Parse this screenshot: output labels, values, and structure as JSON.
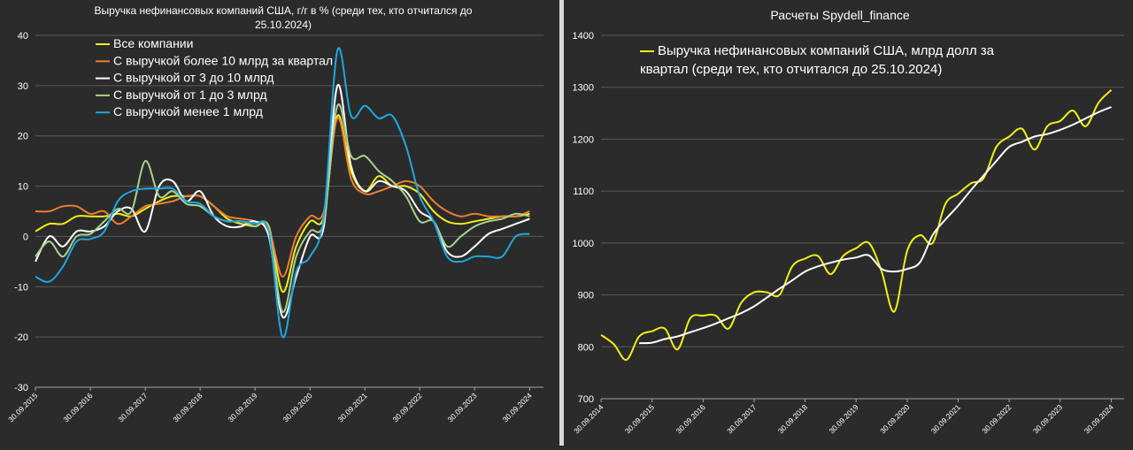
{
  "chart_data": [
    {
      "type": "line",
      "title": "Выручка нефинансовых компаний США, г/г в % (среди тех, кто отчитался до 25.10.2024)",
      "title_lines": [
        "Выручка нефинансовых компаний США, г/г в % (среди тех, кто отчитался до",
        "25.10.2024)"
      ],
      "xlabel": "",
      "ylabel": "",
      "x_start": "2015-09-30",
      "x_end": "2024-12-31",
      "ylim": [
        -30,
        40
      ],
      "y_ticks": [
        -30,
        -20,
        -10,
        0,
        10,
        20,
        30,
        40
      ],
      "x_tick_labels": [
        "30.09.2015",
        "30.09.2016",
        "30.09.2017",
        "30.09.2018",
        "30.09.2019",
        "30.09.2020",
        "30.09.2021",
        "30.09.2022",
        "30.09.2023",
        "30.09.2024"
      ],
      "grid": true,
      "legend_position": "top-left",
      "x": [
        "2015-09-30",
        "2015-12-31",
        "2016-03-31",
        "2016-06-30",
        "2016-09-30",
        "2016-12-31",
        "2017-03-31",
        "2017-06-30",
        "2017-09-30",
        "2017-12-31",
        "2018-03-31",
        "2018-06-30",
        "2018-09-30",
        "2018-12-31",
        "2019-03-31",
        "2019-06-30",
        "2019-09-30",
        "2019-12-31",
        "2020-03-31",
        "2020-06-30",
        "2020-09-30",
        "2020-12-31",
        "2021-03-31",
        "2021-06-30",
        "2021-09-30",
        "2021-12-31",
        "2022-03-31",
        "2022-06-30",
        "2022-09-30",
        "2022-12-31",
        "2023-03-31",
        "2023-06-30",
        "2023-09-30",
        "2023-12-31",
        "2024-03-31",
        "2024-06-30",
        "2024-09-30"
      ],
      "series": [
        {
          "name": "Все компании",
          "color": "#f2ee18",
          "values": [
            1,
            2.5,
            2.5,
            4,
            4,
            4,
            4.5,
            4,
            5.5,
            7,
            8,
            8,
            8,
            6,
            3.5,
            2.5,
            2,
            2,
            -11,
            -2,
            3,
            4,
            24,
            13,
            9,
            12,
            10,
            10,
            8.5,
            5,
            3,
            2.5,
            3,
            3.5,
            4,
            4,
            4.5
          ]
        },
        {
          "name": "С выручкой более 10 млрд за квартал",
          "color": "#ee7d2f",
          "values": [
            5,
            5,
            6,
            6,
            4.5,
            5,
            2.5,
            4,
            6,
            6.5,
            7,
            8,
            8,
            6,
            4,
            3.5,
            3,
            1.5,
            -8,
            0,
            4,
            5,
            23.5,
            11.5,
            8.5,
            9,
            10,
            11,
            10,
            7,
            5,
            4,
            4.5,
            4,
            4,
            4,
            5
          ]
        },
        {
          "name": "С выручкой от 3 до 10 млрд",
          "color": "#ffffff",
          "values": [
            -5,
            0,
            -2,
            1,
            1,
            2,
            5,
            5.5,
            1,
            10,
            11,
            7,
            9,
            4,
            2,
            2,
            3,
            0,
            -16,
            -8,
            0,
            2,
            30,
            14,
            9,
            11,
            10,
            9,
            5,
            3,
            -3,
            -4,
            -2,
            0.5,
            1.5,
            2.5,
            3.5
          ]
        },
        {
          "name": "С выручкой от 1 до 3 млрд",
          "color": "#a9d18e",
          "values": [
            -4,
            -1,
            -4,
            0,
            0.5,
            3,
            5.5,
            5,
            15,
            8,
            9,
            6.5,
            6,
            4,
            3,
            3,
            2,
            1.5,
            -15,
            -4,
            1,
            3,
            26,
            16,
            16,
            13,
            11,
            8,
            3,
            3,
            -2,
            0,
            2,
            3,
            3.5,
            4.5,
            4
          ]
        },
        {
          "name": "С выручкой менее 1 млрд",
          "color": "#1ea7e1",
          "values": [
            -8,
            -9,
            -6,
            -1,
            -0.5,
            1,
            7,
            9,
            9.5,
            9.5,
            9.5,
            7,
            6.5,
            4,
            3,
            3,
            2.5,
            1,
            -20,
            -7,
            -4,
            4,
            37,
            24,
            26,
            23.5,
            24,
            18,
            8,
            3,
            -4,
            -5,
            -4,
            -4,
            -4,
            0,
            0.5
          ]
        }
      ]
    },
    {
      "type": "line",
      "title": "Расчеты Spydell_finance",
      "xlabel": "",
      "ylabel": "",
      "x_start": "2014-09-30",
      "x_end": "2024-12-31",
      "ylim": [
        700,
        1400
      ],
      "y_ticks": [
        700,
        800,
        900,
        1000,
        1100,
        1200,
        1300,
        1400
      ],
      "x_tick_labels": [
        "30.09.2014",
        "30.09.2015",
        "30.09.2016",
        "30.09.2017",
        "30.09.2018",
        "30.09.2019",
        "30.09.2020",
        "30.09.2021",
        "30.09.2022",
        "30.09.2023",
        "30.09.2024"
      ],
      "grid": true,
      "legend_position": "top-left",
      "x": [
        "2014-09-30",
        "2014-12-31",
        "2015-03-31",
        "2015-06-30",
        "2015-09-30",
        "2015-12-31",
        "2016-03-31",
        "2016-06-30",
        "2016-09-30",
        "2016-12-31",
        "2017-03-31",
        "2017-06-30",
        "2017-09-30",
        "2017-12-31",
        "2018-03-31",
        "2018-06-30",
        "2018-09-30",
        "2018-12-31",
        "2019-03-31",
        "2019-06-30",
        "2019-09-30",
        "2019-12-31",
        "2020-03-31",
        "2020-06-30",
        "2020-09-30",
        "2020-12-31",
        "2021-03-31",
        "2021-06-30",
        "2021-09-30",
        "2021-12-31",
        "2022-03-31",
        "2022-06-30",
        "2022-09-30",
        "2022-12-31",
        "2023-03-31",
        "2023-06-30",
        "2023-09-30",
        "2023-12-31",
        "2024-03-31",
        "2024-06-30",
        "2024-09-30"
      ],
      "series": [
        {
          "name": "Выручка нефинансовых компаний США, млрд долл за квартал (среди тех, кто отчитался до 25.10.2024)",
          "name_lines": [
            "Выручка нефинансовых компаний США, млрд долл за",
            "квартал (среди тех, кто отчитался до 25.10.2024)"
          ],
          "color": "#f2ee18",
          "values": [
            823,
            805,
            775,
            820,
            830,
            835,
            795,
            855,
            860,
            860,
            835,
            885,
            905,
            905,
            900,
            955,
            970,
            975,
            940,
            975,
            990,
            1000,
            945,
            868,
            985,
            1015,
            1000,
            1075,
            1095,
            1115,
            1125,
            1185,
            1205,
            1220,
            1180,
            1225,
            1235,
            1255,
            1225,
            1270,
            1295
          ]
        },
        {
          "name": "",
          "color": "#ffffff",
          "values": [
            null,
            null,
            null,
            807,
            808,
            815,
            820,
            828,
            836,
            845,
            855,
            865,
            878,
            895,
            912,
            928,
            945,
            955,
            962,
            968,
            972,
            976,
            950,
            945,
            950,
            963,
            1015,
            1045,
            1072,
            1102,
            1130,
            1158,
            1185,
            1195,
            1205,
            1210,
            1218,
            1228,
            1240,
            1252,
            1262
          ]
        }
      ]
    }
  ]
}
